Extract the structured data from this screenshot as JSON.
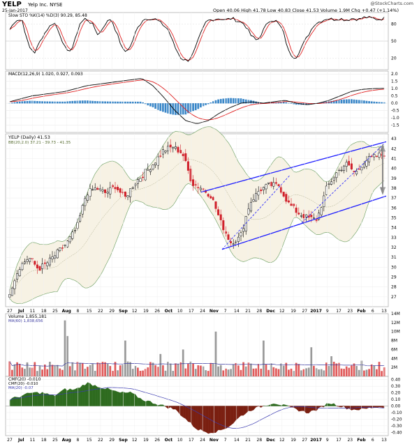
{
  "header": {
    "symbol": "YELP",
    "name": "Yelp Inc. NYSE",
    "date": "25-Jan-2017",
    "quote": "Open 40.06  High 41.78  Low 40.83  Close 41.53  Volume 1.9M  Chg +0.47 (+1.14%)",
    "watermark": "@StockCharts.com"
  },
  "chart_data": [
    {
      "type": "line",
      "panel": "stochastic",
      "legend": "Slow STO %K(14) %D(3) 90.29, 85.48",
      "series": [
        {
          "name": "%K",
          "color": "#000000"
        },
        {
          "name": "%D",
          "color": "#e02020"
        }
      ],
      "ylim": [
        0,
        100
      ],
      "yticks": [
        20,
        50,
        80
      ],
      "k_anchor_values": [
        70,
        88,
        86,
        40,
        30,
        55,
        72,
        84,
        60,
        30,
        40,
        80,
        90,
        80,
        60,
        80,
        90,
        60,
        30,
        40,
        70,
        88,
        90,
        88,
        80,
        70,
        40,
        20,
        15,
        30,
        60,
        85,
        88,
        90,
        87,
        90,
        85,
        80,
        60,
        50,
        70,
        88,
        85,
        70,
        30,
        20,
        40,
        60,
        80,
        85,
        90,
        88,
        90,
        87,
        90,
        88,
        92,
        90,
        88,
        90
      ]
    },
    {
      "type": "line",
      "panel": "macd",
      "legend": "MACD(12,26,9) 1.020, 0.927, 0.093",
      "series": [
        {
          "name": "MACD",
          "color": "#000000"
        },
        {
          "name": "Signal",
          "color": "#e02020"
        },
        {
          "name": "Histogram",
          "color": "#3a87c8"
        }
      ],
      "ylim": [
        -2.0,
        2.2
      ],
      "yticks": [
        -1.5,
        -1.0,
        -0.5,
        0.0,
        0.5,
        1.0,
        1.5,
        2.0
      ],
      "macd_anchor_values": [
        0.1,
        0.3,
        0.5,
        0.6,
        0.7,
        0.8,
        1.0,
        1.2,
        1.3,
        1.4,
        1.5,
        1.6,
        1.7,
        1.2,
        0.4,
        -0.5,
        -1.2,
        -1.4,
        -1.2,
        -0.7,
        -0.3,
        0.0,
        0.1,
        0.0,
        0.1,
        0.2,
        0.0,
        -0.1,
        0.0,
        0.2,
        0.5,
        0.8,
        0.95,
        1.0,
        1.02
      ]
    },
    {
      "type": "candlestick",
      "panel": "price",
      "legend": "YELP (Daily) 41.53",
      "sublegend": "BB(20,2.0) 37.21 - 39.73 - 41.35",
      "ylim": [
        26,
        43.5
      ],
      "yticks": [
        27,
        28,
        29,
        30,
        31,
        32,
        33,
        34,
        35,
        36,
        37,
        38,
        39,
        40,
        41,
        42,
        43
      ],
      "x_tick_labels": [
        "27",
        "Jul",
        "11",
        "18",
        "25",
        "Aug",
        "8",
        "15",
        "22",
        "29",
        "Sep",
        "12",
        "19",
        "26",
        "Oct",
        "10",
        "17",
        "24",
        "Nov",
        "7",
        "14",
        "21",
        "28",
        "Dec",
        "12",
        "19",
        "27",
        "2017",
        "9",
        "17",
        "23",
        "Feb",
        "6",
        "13"
      ],
      "close_anchor_values": [
        27.5,
        30,
        31,
        29.8,
        30.5,
        31.5,
        32.5,
        34,
        37.5,
        38,
        37.5,
        38.2,
        37,
        38.5,
        39.5,
        40.5,
        41.8,
        42.2,
        41.5,
        38.5,
        38,
        37.2,
        34.5,
        32.5,
        33,
        36.5,
        37.8,
        38.3,
        38.3,
        36.5,
        35.5,
        35,
        34.8,
        38,
        39.5,
        40.5,
        39.5,
        40.8,
        41.2,
        41.5
      ],
      "annotations": [
        {
          "type": "trend-channel",
          "color": "#1a1aff"
        },
        {
          "type": "dashed-trendline",
          "color": "#1a1aff"
        },
        {
          "type": "measure-arrow",
          "color": "#888888"
        }
      ]
    },
    {
      "type": "bar",
      "panel": "volume",
      "legend": "Volume 1,855,181",
      "sublegend": "MA(60) 1,838,656",
      "ylim": [
        0,
        14
      ],
      "yticks": [
        2,
        4,
        6,
        8,
        10,
        12,
        14
      ],
      "ytick_suffix": "M"
    },
    {
      "type": "area",
      "panel": "cmf",
      "legend": "CMF(20) -0.010",
      "sublegend": "CMF(20) -0.010",
      "sublegend2": "MA(20) -0.07",
      "ylim": [
        -0.45,
        0.45
      ],
      "yticks": [
        -0.4,
        -0.3,
        -0.2,
        -0.1,
        0.0,
        0.1,
        0.2,
        0.3,
        0.4
      ],
      "cmf_anchor_values": [
        0.1,
        0.15,
        0.2,
        0.2,
        0.15,
        0.25,
        0.25,
        0.35,
        0.3,
        0.25,
        0.2,
        0.2,
        0.1,
        0.05,
        0.0,
        -0.05,
        -0.2,
        -0.35,
        -0.4,
        -0.38,
        -0.3,
        -0.15,
        -0.05,
        0.0,
        0.05,
        0.0,
        -0.05,
        -0.1,
        -0.05,
        0.05,
        0.0,
        -0.05,
        -0.05,
        -0.02,
        -0.01
      ]
    }
  ]
}
